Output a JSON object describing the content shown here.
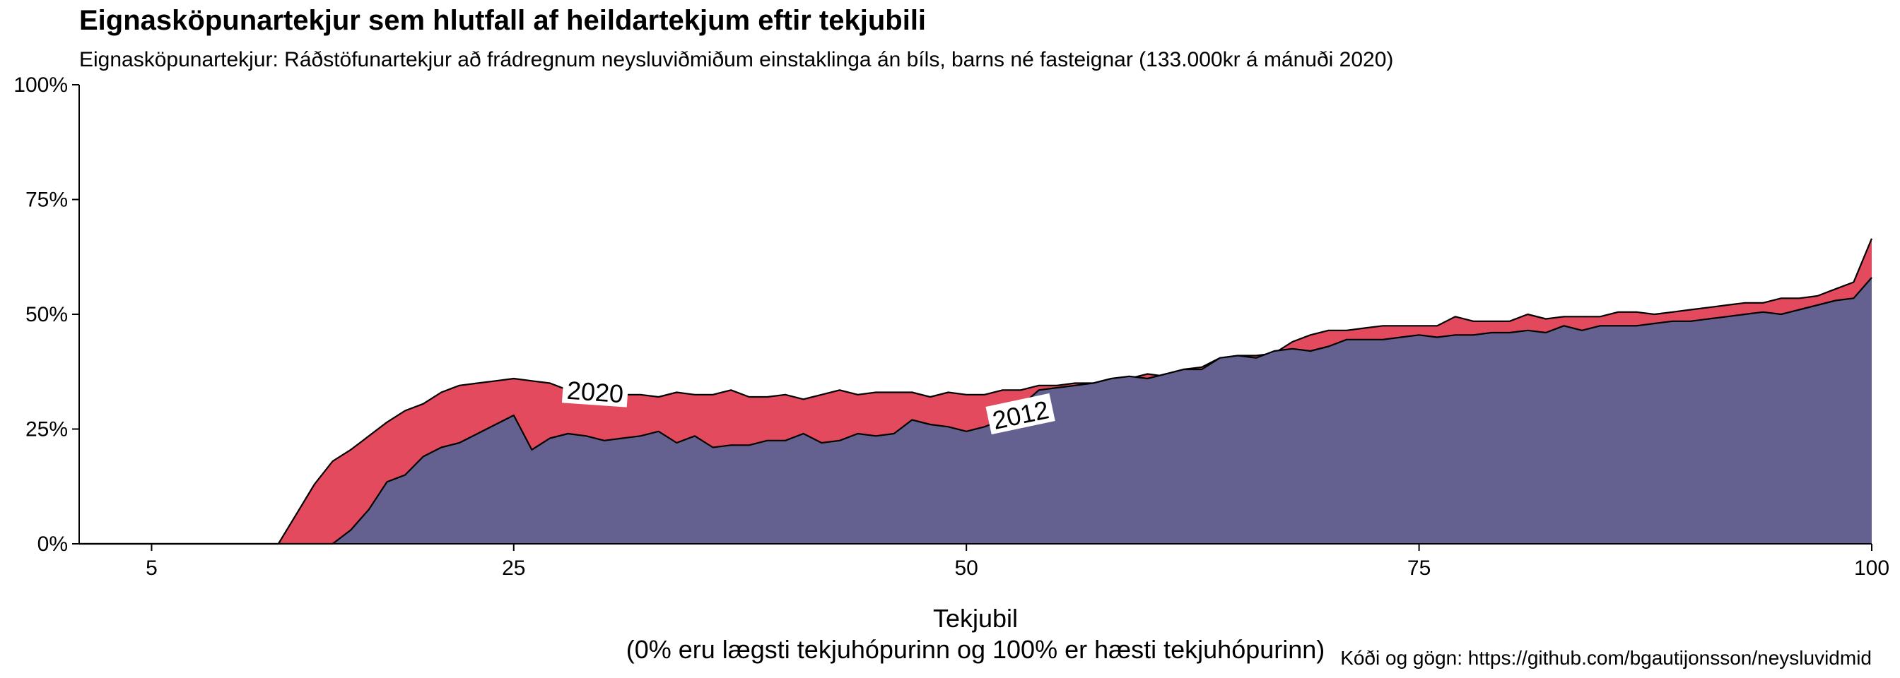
{
  "chart_data": {
    "type": "area",
    "title": "Eignasköpunartekjur sem hlutfall af heildartekjum eftir tekjubili",
    "subtitle": "Eignasköpunartekjur: Ráðstöfunartekjur að frádregnum neysluviðmiðum einstaklinga án bíls, barns né fasteignar (133.000kr á mánuði 2020)",
    "xlabel": "Tekjubil",
    "xlabel_note": "(0% eru lægsti tekjuhópurinn og 100% er hæsti tekjuhópurinn)",
    "caption": "Kóði og gögn: https://github.com/bgautijonsson/neysluvidmid",
    "x_ticks": [
      5,
      25,
      50,
      75,
      100
    ],
    "y_ticks": [
      "0%",
      "25%",
      "50%",
      "75%",
      "100%"
    ],
    "y_tick_values": [
      0,
      25,
      50,
      75,
      100
    ],
    "xlim": [
      1,
      100
    ],
    "ylim": [
      0,
      100
    ],
    "grid": false,
    "legend": "none",
    "colors": {
      "2020": "#e34a5e",
      "2012": "#646090"
    },
    "series": [
      {
        "name": "2020",
        "label_text": "2020",
        "label_x": 29.5,
        "label_y": 33,
        "x": [
          1,
          2,
          3,
          4,
          5,
          6,
          7,
          8,
          9,
          10,
          11,
          12,
          13,
          14,
          15,
          16,
          17,
          18,
          19,
          20,
          21,
          22,
          23,
          24,
          25,
          26,
          27,
          28,
          29,
          30,
          31,
          32,
          33,
          34,
          35,
          36,
          37,
          38,
          39,
          40,
          41,
          42,
          43,
          44,
          45,
          46,
          47,
          48,
          49,
          50,
          51,
          52,
          53,
          54,
          55,
          56,
          57,
          58,
          59,
          60,
          61,
          62,
          63,
          64,
          65,
          66,
          67,
          68,
          69,
          70,
          71,
          72,
          73,
          74,
          75,
          76,
          77,
          78,
          79,
          80,
          81,
          82,
          83,
          84,
          85,
          86,
          87,
          88,
          89,
          90,
          91,
          92,
          93,
          94,
          95,
          96,
          97,
          98,
          99,
          100
        ],
        "values": [
          0,
          0,
          0,
          0,
          0,
          0,
          0,
          0,
          0,
          0,
          0,
          0,
          6.5,
          13,
          18,
          20.5,
          23.5,
          26.5,
          29,
          30.5,
          33,
          34.5,
          35,
          35.5,
          36,
          35.5,
          35,
          33.5,
          33,
          32.5,
          32.5,
          32.5,
          32,
          33,
          32.5,
          32.5,
          33.5,
          32,
          32,
          32.5,
          31.5,
          32.5,
          33.5,
          32.5,
          33,
          33,
          33,
          32,
          33,
          32.5,
          32.5,
          33.5,
          33.5,
          34.5,
          34.5,
          35,
          35,
          35,
          36,
          37,
          36.5,
          38,
          38.5,
          40.5,
          41,
          41,
          41.5,
          44,
          45.5,
          46.5,
          46.5,
          47,
          47.5,
          47.5,
          47.5,
          47.5,
          49.5,
          48.5,
          48.5,
          48.5,
          50,
          49,
          49.5,
          49.5,
          49.5,
          50.5,
          50.5,
          50,
          50.5,
          51,
          51.5,
          52,
          52.5,
          52.5,
          53.5,
          53.5,
          54,
          55.5,
          57,
          66.5
        ]
      },
      {
        "name": "2012",
        "label_text": "2012",
        "label_x": 53,
        "label_y": 28,
        "x": [
          1,
          2,
          3,
          4,
          5,
          6,
          7,
          8,
          9,
          10,
          11,
          12,
          13,
          14,
          15,
          16,
          17,
          18,
          19,
          20,
          21,
          22,
          23,
          24,
          25,
          26,
          27,
          28,
          29,
          30,
          31,
          32,
          33,
          34,
          35,
          36,
          37,
          38,
          39,
          40,
          41,
          42,
          43,
          44,
          45,
          46,
          47,
          48,
          49,
          50,
          51,
          52,
          53,
          54,
          55,
          56,
          57,
          58,
          59,
          60,
          61,
          62,
          63,
          64,
          65,
          66,
          67,
          68,
          69,
          70,
          71,
          72,
          73,
          74,
          75,
          76,
          77,
          78,
          79,
          80,
          81,
          82,
          83,
          84,
          85,
          86,
          87,
          88,
          89,
          90,
          91,
          92,
          93,
          94,
          95,
          96,
          97,
          98,
          99,
          100
        ],
        "values": [
          0,
          0,
          0,
          0,
          0,
          0,
          0,
          0,
          0,
          0,
          0,
          0,
          0,
          0,
          0,
          3,
          7.5,
          13.5,
          15,
          19,
          21,
          22,
          24,
          26,
          28,
          20.5,
          23,
          24,
          23.5,
          22.5,
          23,
          23.5,
          24.5,
          22,
          23.5,
          21,
          21.5,
          21.5,
          22.5,
          22.5,
          24,
          22,
          22.5,
          24,
          23.5,
          24,
          27,
          26,
          25.5,
          24.5,
          25.5,
          27,
          30,
          33.5,
          34,
          34.5,
          35,
          36,
          36.5,
          36,
          37,
          38,
          38,
          40.5,
          41,
          40.5,
          42,
          42.5,
          42,
          43,
          44.5,
          44.5,
          44.5,
          45,
          45.5,
          45,
          45.5,
          45.5,
          46,
          46,
          46.5,
          46,
          47.5,
          46.5,
          47.5,
          47.5,
          47.5,
          48,
          48.5,
          48.5,
          49,
          49.5,
          50,
          50.5,
          50,
          51,
          52,
          53,
          53.5,
          58
        ]
      }
    ]
  }
}
